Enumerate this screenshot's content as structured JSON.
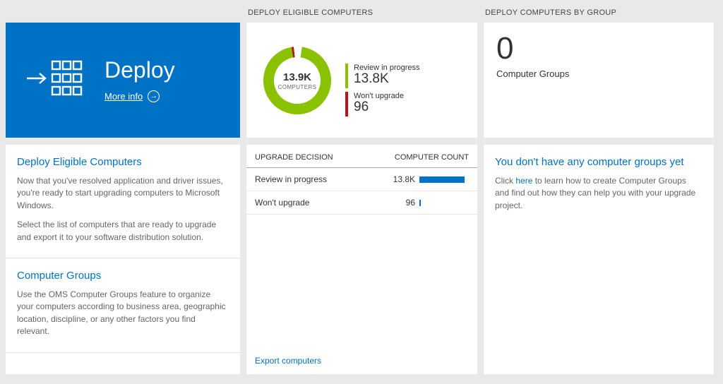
{
  "headers": {
    "middle": "DEPLOY ELIGIBLE COMPUTERS",
    "right": "DEPLOY COMPUTERS BY GROUP"
  },
  "deploy_tile": {
    "title": "Deploy",
    "more_info": "More info",
    "arrow_glyph": "→",
    "color": "#0072c6"
  },
  "left_panel": {
    "sections": [
      {
        "heading": "Deploy Eligible Computers",
        "paragraphs": [
          "Now that you've resolved application and driver issues, you're ready to start upgrading computers to Microsoft Windows.",
          "Select the list of computers that are ready to upgrade and export it to your software distribution solution."
        ]
      },
      {
        "heading": "Computer Groups",
        "paragraphs": [
          "Use the OMS Computer Groups feature to organize your computers according to business area, geographic location, discipline, or any other factors you find relevant."
        ]
      }
    ]
  },
  "donut": {
    "center_value": "13.9K",
    "center_label": "COMPUTERS",
    "colors": {
      "green": "#8ac201",
      "red": "#ba141a"
    },
    "legend": [
      {
        "label": "Review in progress",
        "value": "13.8K",
        "color": "#8ac201"
      },
      {
        "label": "Won't upgrade",
        "value": "96",
        "color": "#ba141a"
      }
    ]
  },
  "table": {
    "headers": {
      "decision": "UPGRADE DECISION",
      "count": "COMPUTER COUNT"
    },
    "bar_color": "#0072c6",
    "rows": [
      {
        "decision": "Review in progress",
        "count": "13.8K",
        "value": 13800
      },
      {
        "decision": "Won't upgrade",
        "count": "96",
        "value": 96
      }
    ],
    "export_label": "Export computers"
  },
  "groups_tile": {
    "count": "0",
    "label": "Computer Groups"
  },
  "groups_panel": {
    "heading": "You don't have any computer groups yet",
    "text_before": "Click ",
    "link_text": "here",
    "text_after": " to learn how to create Computer Groups and find out how they can help you with your upgrade project."
  },
  "chart_data": {
    "type": "pie",
    "title": "Deploy Eligible Computers",
    "center_total": "13.9K COMPUTERS",
    "categories": [
      "Review in progress",
      "Won't upgrade"
    ],
    "values": [
      13800,
      96
    ],
    "colors": [
      "#8ac201",
      "#ba141a"
    ],
    "legend_position": "right"
  }
}
